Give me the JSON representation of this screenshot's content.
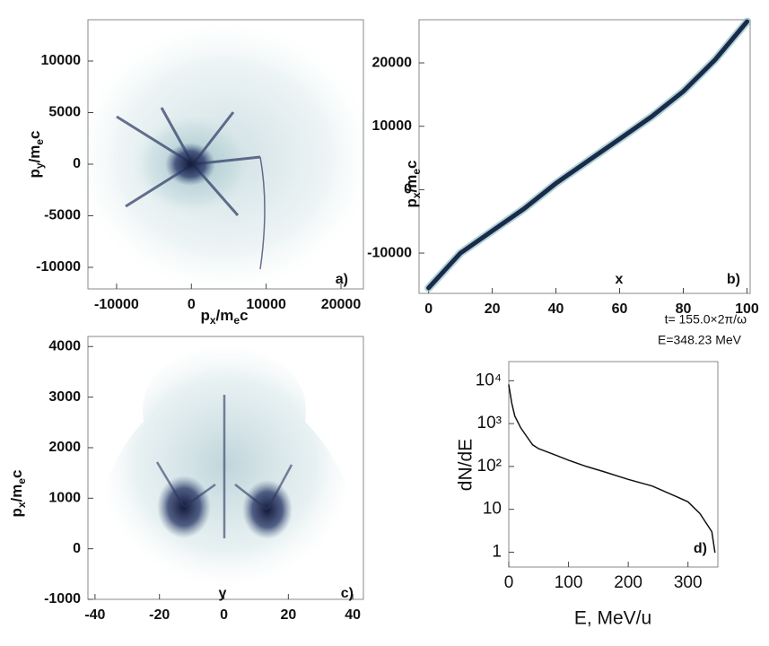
{
  "chart_data": [
    {
      "type": "density",
      "xlabel": [
        "p",
        "x",
        "/m",
        "e",
        "c"
      ],
      "ylabel": [
        "p",
        "y",
        "/m",
        "e",
        "c"
      ],
      "xlim": [
        -13830,
        23000
      ],
      "xticks": [
        -10000,
        0,
        10000,
        20000
      ],
      "ylim": [
        -12090,
        14000
      ],
      "yticks": [
        -10000,
        -5000,
        0,
        5000,
        10000
      ],
      "annotations": [
        "a)"
      ]
    },
    {
      "type": "line",
      "ylabel": [
        "p",
        "x",
        "/m",
        "e",
        "c"
      ],
      "xlim": [
        -3,
        101
      ],
      "xticks": [
        0,
        20,
        40,
        60,
        80,
        100
      ],
      "ylim": [
        -16360,
        26800
      ],
      "yticks": [
        -10000,
        0,
        10000,
        20000
      ],
      "x": [
        0,
        10,
        20,
        30,
        40,
        50,
        60,
        70,
        80,
        90,
        100
      ],
      "series": [
        {
          "color": "#1c2a4a",
          "values": [
            -15500,
            -10000,
            -6500,
            -3000,
            1000,
            4500,
            8000,
            11500,
            15500,
            20500,
            26500
          ]
        }
      ],
      "annotations": [
        "x",
        "b)",
        "t=   155.0×2π/ω",
        "E=348.23 MeV"
      ]
    },
    {
      "type": "density",
      "ylabel": [
        "p",
        "x",
        "/m",
        "e",
        "c"
      ],
      "xlim": [
        -42.2,
        43.3
      ],
      "xticks": [
        -40,
        -20,
        0,
        20,
        40
      ],
      "ylim": [
        -1000,
        4200
      ],
      "yticks": [
        -1000,
        0,
        1000,
        2000,
        3000,
        4000
      ],
      "annotations": [
        "y",
        "c)"
      ]
    },
    {
      "type": "line",
      "log_y": true,
      "xlabel": "E, MeV/u",
      "ylabel": "dN/dE",
      "xlim": [
        0,
        350
      ],
      "xticks": [
        0,
        100,
        200,
        300
      ],
      "ylim": [
        0.45,
        28000
      ],
      "yticks": [
        1,
        10,
        {
          "value": 100,
          "label": "10²"
        },
        {
          "value": 1000,
          "label": "10³"
        },
        {
          "value": 10000,
          "label": "10⁴"
        }
      ],
      "x": [
        0,
        5,
        10,
        20,
        30,
        40,
        50,
        60,
        80,
        100,
        130,
        160,
        200,
        240,
        280,
        300,
        320,
        340,
        345
      ],
      "series": [
        {
          "color": "#111111",
          "values": [
            8000,
            3000,
            1500,
            800,
            500,
            320,
            260,
            230,
            180,
            140,
            100,
            75,
            50,
            35,
            20,
            15,
            8,
            3,
            1
          ]
        }
      ],
      "annotations": [
        "d)"
      ]
    }
  ]
}
